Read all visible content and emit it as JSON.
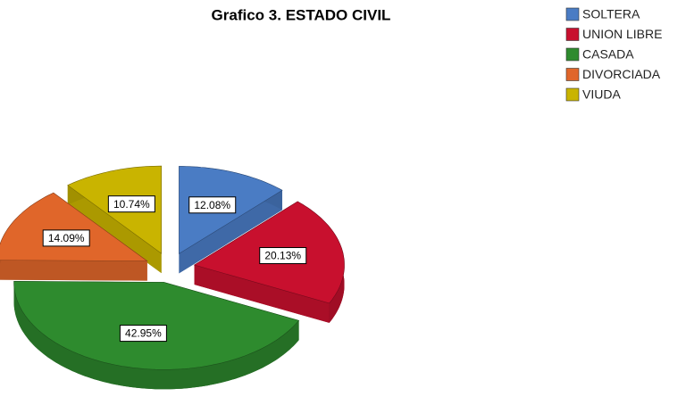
{
  "chart_data": {
    "type": "pie",
    "title": "Grafico 3. ESTADO CIVIL",
    "categories": [
      "SOLTERA",
      "UNION LIBRE",
      "CASADA",
      "DIVORCIADA",
      "VIUDA"
    ],
    "values": [
      12.08,
      20.13,
      42.95,
      14.09,
      10.74
    ],
    "value_labels": [
      "12.08%",
      "20.13%",
      "42.95%",
      "14.09%",
      "10.74%"
    ],
    "colors": [
      "#4a7cc4",
      "#c8102e",
      "#2e8b2e",
      "#e0662a",
      "#c9b400"
    ],
    "legend": "top-right"
  }
}
